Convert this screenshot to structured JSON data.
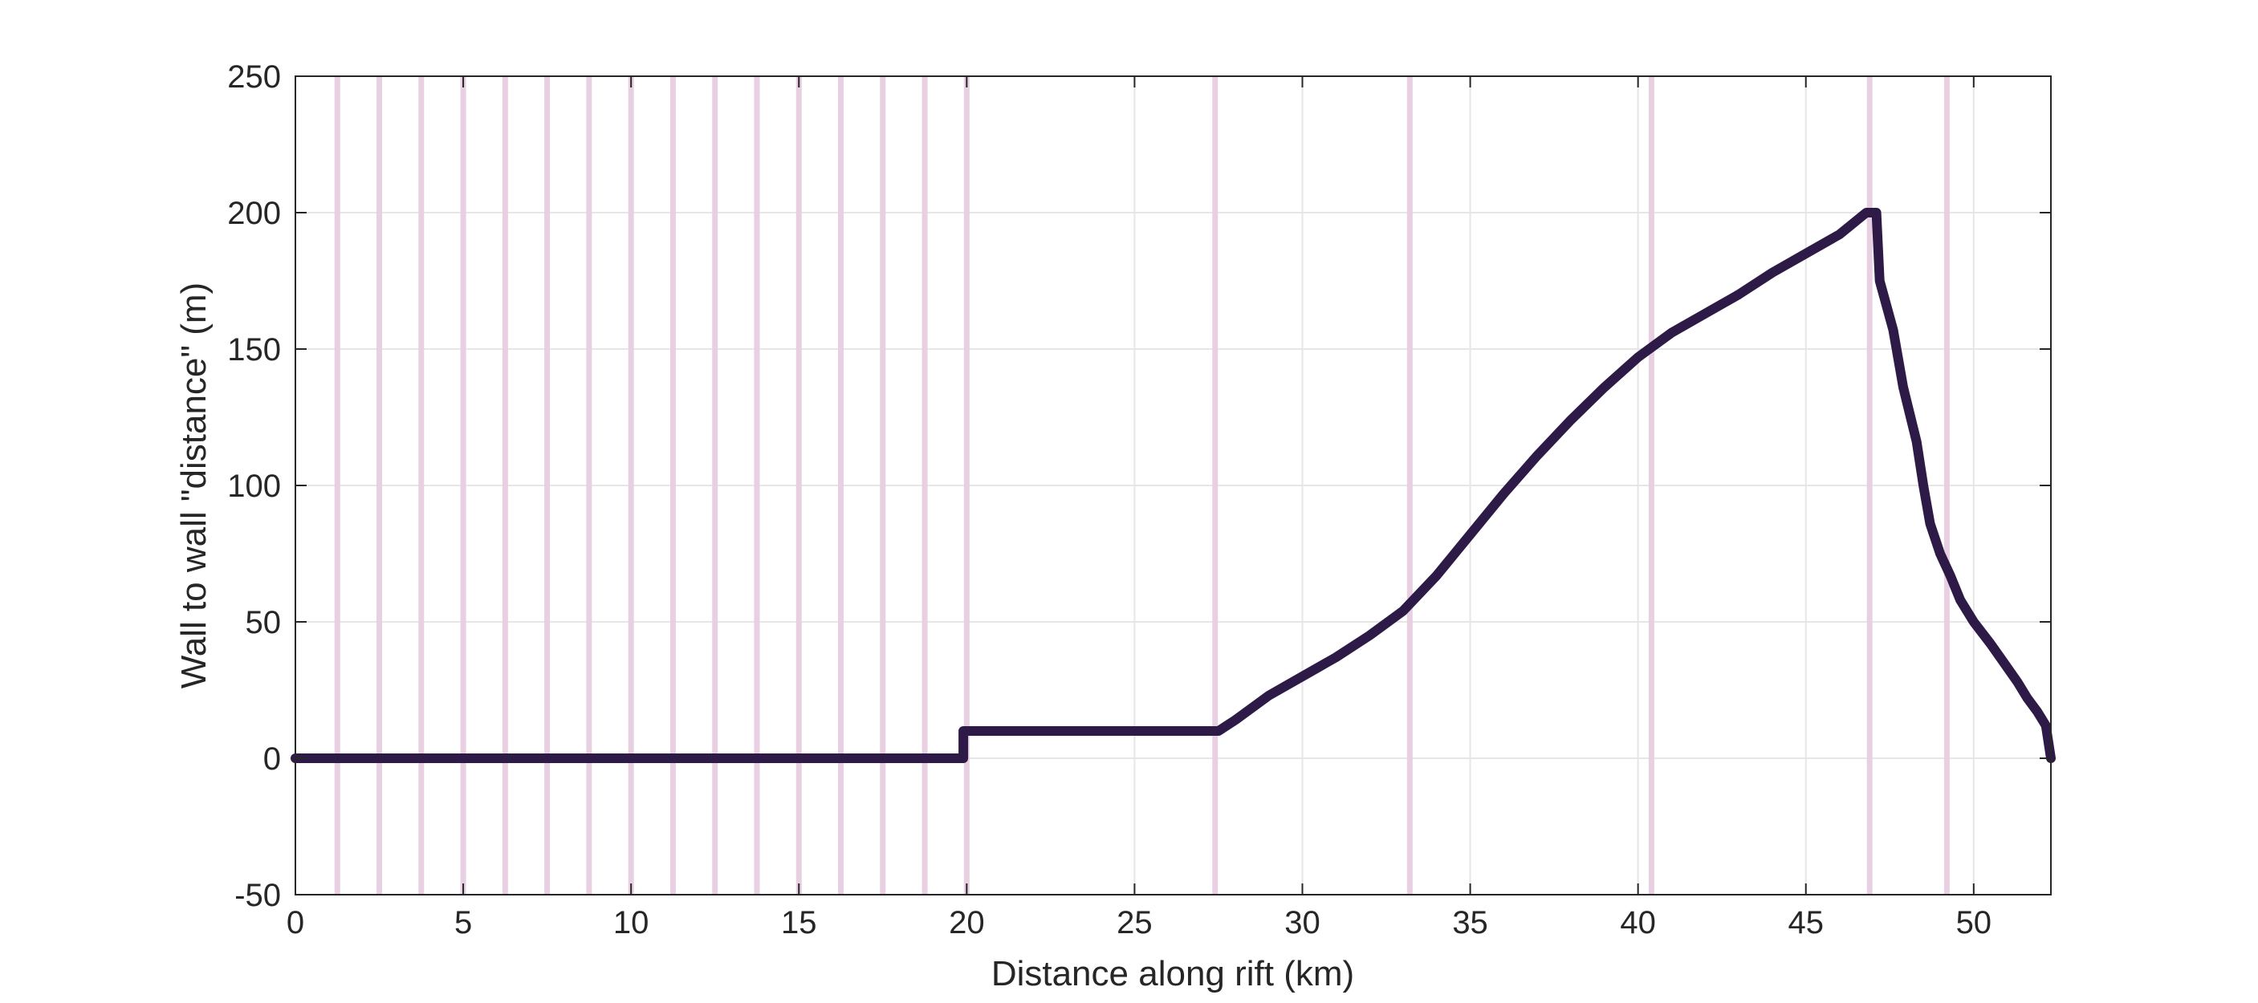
{
  "chart_data": {
    "type": "line",
    "title": "",
    "xlabel": "Distance along rift (km)",
    "ylabel": "Wall to wall \"distance\" (m)",
    "xlim": [
      0,
      52.3
    ],
    "ylim": [
      -50,
      250
    ],
    "xticks": [
      0,
      5,
      10,
      15,
      20,
      25,
      30,
      35,
      40,
      45,
      50
    ],
    "yticks": [
      -50,
      0,
      50,
      100,
      150,
      200,
      250
    ],
    "grid": true,
    "legend": "none",
    "colors": {
      "line": "#2e1a47",
      "markers": "#e8cfe2",
      "grid": "#e6e6e6",
      "axis": "#262626"
    },
    "marker_lines_x": [
      1.25,
      2.5,
      3.75,
      5.0,
      6.25,
      7.5,
      8.75,
      10.0,
      11.25,
      12.5,
      13.75,
      15.0,
      16.25,
      17.5,
      18.75,
      20.0,
      27.4,
      33.2,
      40.4,
      46.9,
      49.2
    ],
    "series": [
      {
        "x": [
          0,
          19.9,
          19.9,
          27.5,
          28.0,
          29.0,
          30.0,
          31.0,
          32.0,
          33.0,
          34.0,
          35.0,
          36.0,
          37.0,
          38.0,
          39.0,
          40.0,
          41.0,
          42.0,
          43.0,
          44.0,
          45.0,
          46.0,
          46.8,
          47.1,
          47.2,
          47.6,
          47.9,
          48.3,
          48.5,
          48.7,
          49.0,
          49.3,
          49.6,
          50.0,
          50.5,
          50.9,
          51.3,
          51.6,
          51.9,
          52.15,
          52.25,
          52.3
        ],
        "y": [
          0,
          0,
          10,
          10,
          14,
          23,
          30,
          37,
          45,
          54,
          67,
          82,
          97,
          111,
          124,
          136,
          147,
          156,
          163,
          170,
          178,
          185,
          192,
          200,
          200,
          175,
          157,
          136,
          116,
          100,
          86,
          75,
          67,
          58,
          50,
          42,
          35,
          28,
          22,
          17,
          12,
          4,
          0
        ]
      }
    ]
  }
}
